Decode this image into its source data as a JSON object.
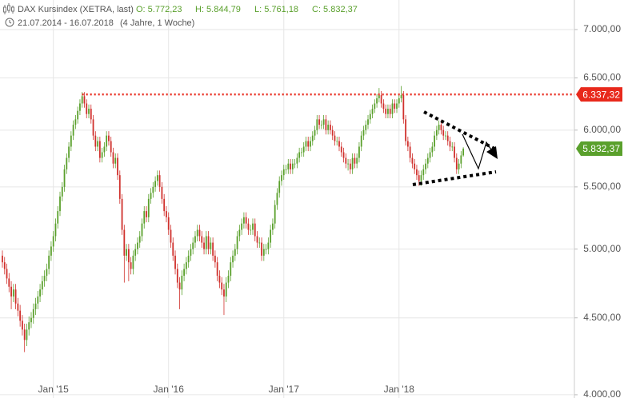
{
  "chart_data": {
    "type": "candlestick",
    "title": "DAX Kursindex (XETRA, last)",
    "quote": [
      "O: 5.772,23",
      "H: 5.844,79",
      "L: 5.761,18",
      "C: 5.832,37"
    ],
    "date_range": "21.07.2014 - 16.07.2018",
    "period": "(4 Jahre, 1 Woche)",
    "categories": [
      null,
      null,
      null,
      null,
      null,
      null,
      null,
      null,
      null,
      null,
      null,
      null,
      null,
      null,
      null,
      null,
      null,
      null,
      null,
      null,
      null,
      null,
      null,
      "Jan '15",
      null,
      null,
      null,
      null,
      null,
      null,
      null,
      null,
      null,
      null,
      null,
      null,
      null,
      null,
      null,
      null,
      null,
      null,
      null,
      null,
      null,
      null,
      null,
      null,
      null,
      null,
      null,
      null,
      null,
      null,
      null,
      null,
      null,
      null,
      null,
      null,
      null,
      null,
      null,
      null,
      null,
      null,
      null,
      null,
      null,
      null,
      null,
      null,
      null,
      null,
      null,
      "Jan '16",
      null,
      null,
      null,
      null,
      null,
      null,
      null,
      null,
      null,
      null,
      null,
      null,
      null,
      null,
      null,
      null,
      null,
      null,
      null,
      null,
      null,
      null,
      null,
      null,
      null,
      null,
      null,
      null,
      null,
      null,
      null,
      null,
      null,
      null,
      null,
      null,
      null,
      null,
      null,
      null,
      null,
      null,
      null,
      null,
      null,
      null,
      null,
      null,
      null,
      null,
      null,
      "Jan '17",
      null,
      null,
      null,
      null,
      null,
      null,
      null,
      null,
      null,
      null,
      null,
      null,
      null,
      null,
      null,
      null,
      null,
      null,
      null,
      null,
      null,
      null,
      null,
      null,
      null,
      null,
      null,
      null,
      null,
      null,
      null,
      null,
      null,
      null,
      null,
      null,
      null,
      null,
      null,
      null,
      null,
      null,
      null,
      null,
      null,
      null,
      null,
      null,
      null,
      null,
      null,
      "Jan '18",
      null,
      null,
      null,
      null,
      null,
      null,
      null,
      null,
      null,
      null,
      null,
      null,
      null,
      null,
      null,
      null,
      null,
      null,
      null,
      null,
      null,
      null,
      null,
      null,
      null,
      null,
      null,
      null,
      null
    ],
    "open": [
      4950,
      4900,
      4850,
      4780,
      4720,
      4650,
      4700,
      4600,
      4550,
      4480,
      4420,
      4350,
      4420,
      4470,
      4500,
      4560,
      4600,
      4650,
      4700,
      4760,
      4800,
      4850,
      4950,
      5020,
      5100,
      5200,
      5300,
      5420,
      5500,
      5650,
      5750,
      5850,
      5950,
      6050,
      6100,
      6180,
      6250,
      6320,
      6250,
      6150,
      6200,
      6100,
      5950,
      5850,
      5900,
      5750,
      5800,
      5850,
      5950,
      5900,
      5800,
      5700,
      5750,
      5600,
      5400,
      5150,
      4950,
      5000,
      4900,
      4850,
      4950,
      5000,
      5050,
      5100,
      5200,
      5300,
      5250,
      5400,
      5450,
      5500,
      5550,
      5600,
      5500,
      5400,
      5300,
      5250,
      5150,
      5050,
      4950,
      4850,
      4750,
      4700,
      4800,
      4850,
      4900,
      4950,
      5000,
      5050,
      5100,
      5150,
      5100,
      5050,
      5000,
      5100,
      5000,
      5050,
      4950,
      4900,
      4800,
      4750,
      4700,
      4650,
      4750,
      4800,
      4900,
      4950,
      5000,
      5100,
      5150,
      5200,
      5250,
      5200,
      5150,
      5150,
      5200,
      5100,
      5050,
      5050,
      4950,
      5000,
      5000,
      5050,
      5150,
      5200,
      5350,
      5450,
      5550,
      5600,
      5650,
      5650,
      5700,
      5650,
      5700,
      5700,
      5750,
      5800,
      5800,
      5850,
      5900,
      5850,
      5900,
      5950,
      6000,
      6100,
      6050,
      6050,
      6100,
      6000,
      6050,
      6000,
      5950,
      5900,
      5900,
      5850,
      5800,
      5750,
      5700,
      5700,
      5650,
      5750,
      5700,
      5750,
      5850,
      5950,
      6000,
      6050,
      6100,
      6150,
      6200,
      6250,
      6300,
      6330,
      6250,
      6200,
      6150,
      6200,
      6150,
      6250,
      6200,
      6250,
      6300,
      6330,
      6100,
      5900,
      5850,
      5750,
      5700,
      5650,
      5600,
      5550,
      5600,
      5650,
      5700,
      5750,
      5800,
      5850,
      5950,
      6000,
      6050,
      6000,
      5950,
      5950,
      5900,
      5850,
      5850,
      5750,
      5650,
      5700,
      5772.23
    ],
    "high": [
      4990,
      4940,
      4890,
      4820,
      4760,
      4740,
      4740,
      4640,
      4590,
      4520,
      4460,
      4460,
      4510,
      4540,
      4600,
      4640,
      4690,
      4740,
      4800,
      4840,
      4890,
      4990,
      5060,
      5140,
      5240,
      5340,
      5460,
      5540,
      5690,
      5790,
      5890,
      5990,
      6090,
      6140,
      6220,
      6290,
      6360,
      6360,
      6290,
      6240,
      6240,
      6140,
      5990,
      5940,
      5940,
      5840,
      5890,
      5990,
      5990,
      5940,
      5840,
      5790,
      5790,
      5640,
      5440,
      5190,
      5040,
      5040,
      4940,
      4990,
      5040,
      5090,
      5140,
      5240,
      5340,
      5340,
      5440,
      5490,
      5540,
      5590,
      5640,
      5640,
      5540,
      5440,
      5340,
      5290,
      5190,
      5090,
      4990,
      4890,
      4790,
      4840,
      4890,
      4940,
      4990,
      5040,
      5090,
      5140,
      5190,
      5190,
      5140,
      5090,
      5140,
      5140,
      5090,
      5090,
      4990,
      4940,
      4840,
      4790,
      4740,
      4790,
      4840,
      4940,
      4990,
      5040,
      5140,
      5190,
      5240,
      5290,
      5290,
      5240,
      5190,
      5240,
      5240,
      5140,
      5090,
      5090,
      5040,
      5040,
      5090,
      5190,
      5240,
      5390,
      5490,
      5590,
      5640,
      5690,
      5690,
      5740,
      5740,
      5740,
      5740,
      5790,
      5840,
      5840,
      5890,
      5940,
      5940,
      5940,
      5990,
      6040,
      6140,
      6140,
      6090,
      6140,
      6140,
      6090,
      6090,
      6040,
      5990,
      5940,
      5940,
      5890,
      5840,
      5790,
      5740,
      5740,
      5790,
      5790,
      5790,
      5890,
      5990,
      6040,
      6090,
      6140,
      6190,
      6240,
      6290,
      6340,
      6400,
      6370,
      6290,
      6240,
      6240,
      6240,
      6290,
      6290,
      6290,
      6340,
      6420,
      6370,
      6140,
      5940,
      5890,
      5790,
      5740,
      5690,
      5640,
      5640,
      5690,
      5740,
      5790,
      5840,
      5890,
      5990,
      6040,
      6090,
      6090,
      6040,
      5990,
      5990,
      5940,
      5890,
      5890,
      5790,
      5740,
      5810,
      5844.79
    ],
    "low": [
      4860,
      4810,
      4740,
      4680,
      4560,
      4610,
      4560,
      4510,
      4440,
      4380,
      4270,
      4310,
      4380,
      4430,
      4460,
      4520,
      4560,
      4610,
      4660,
      4720,
      4760,
      4810,
      4910,
      4980,
      5060,
      5160,
      5260,
      5380,
      5460,
      5610,
      5710,
      5810,
      5910,
      6010,
      6060,
      6140,
      6210,
      6210,
      6110,
      6110,
      6060,
      5910,
      5810,
      5810,
      5710,
      5710,
      5760,
      5810,
      5860,
      5760,
      5660,
      5660,
      5560,
      5360,
      5110,
      4750,
      4910,
      4760,
      4810,
      4810,
      4910,
      4960,
      5010,
      5060,
      5160,
      5210,
      5210,
      5360,
      5410,
      5460,
      5510,
      5460,
      5360,
      5260,
      5210,
      5110,
      5010,
      4910,
      4810,
      4710,
      4560,
      4660,
      4760,
      4810,
      4860,
      4910,
      4960,
      5010,
      5060,
      5060,
      5010,
      4960,
      4960,
      4960,
      4960,
      4910,
      4860,
      4760,
      4710,
      4660,
      4520,
      4610,
      4710,
      4760,
      4860,
      4910,
      4960,
      5060,
      5110,
      5160,
      5160,
      5110,
      5110,
      5110,
      5060,
      5010,
      5010,
      4910,
      4910,
      4960,
      4960,
      5010,
      5110,
      5160,
      5310,
      5410,
      5510,
      5560,
      5610,
      5610,
      5610,
      5610,
      5660,
      5660,
      5710,
      5760,
      5760,
      5810,
      5810,
      5810,
      5860,
      5910,
      5960,
      6010,
      6010,
      6010,
      5960,
      5960,
      5960,
      5910,
      5860,
      5860,
      5810,
      5760,
      5710,
      5660,
      5640,
      5610,
      5610,
      5660,
      5660,
      5710,
      5810,
      5910,
      5960,
      6010,
      6060,
      6110,
      6160,
      6210,
      6260,
      6210,
      6160,
      6110,
      6110,
      6110,
      6110,
      6160,
      6160,
      6210,
      6260,
      6060,
      5860,
      5810,
      5710,
      5660,
      5610,
      5560,
      5510,
      5510,
      5560,
      5610,
      5660,
      5710,
      5760,
      5810,
      5910,
      5960,
      5960,
      5910,
      5910,
      5860,
      5810,
      5810,
      5710,
      5610,
      5610,
      5660,
      5761.18
    ],
    "close": [
      4900,
      4850,
      4780,
      4720,
      4650,
      4700,
      4600,
      4550,
      4480,
      4420,
      4350,
      4420,
      4470,
      4500,
      4560,
      4600,
      4650,
      4700,
      4760,
      4800,
      4850,
      4950,
      5020,
      5100,
      5200,
      5300,
      5420,
      5500,
      5650,
      5750,
      5850,
      5950,
      6050,
      6100,
      6180,
      6250,
      6320,
      6250,
      6150,
      6200,
      6100,
      5950,
      5850,
      5900,
      5750,
      5800,
      5850,
      5950,
      5900,
      5800,
      5700,
      5750,
      5600,
      5400,
      5150,
      4950,
      5000,
      4900,
      4850,
      4950,
      5000,
      5050,
      5100,
      5200,
      5300,
      5250,
      5400,
      5450,
      5500,
      5550,
      5600,
      5500,
      5400,
      5300,
      5250,
      5150,
      5050,
      4950,
      4850,
      4750,
      4700,
      4800,
      4850,
      4900,
      4950,
      5000,
      5050,
      5100,
      5150,
      5100,
      5050,
      5000,
      5100,
      5000,
      5050,
      4950,
      4900,
      4800,
      4750,
      4700,
      4650,
      4750,
      4800,
      4900,
      4950,
      5000,
      5100,
      5150,
      5200,
      5250,
      5200,
      5150,
      5150,
      5200,
      5100,
      5050,
      5050,
      4950,
      5000,
      5000,
      5050,
      5150,
      5200,
      5350,
      5450,
      5550,
      5600,
      5650,
      5650,
      5700,
      5650,
      5700,
      5700,
      5750,
      5800,
      5800,
      5850,
      5900,
      5850,
      5900,
      5950,
      6000,
      6100,
      6050,
      6050,
      6100,
      6000,
      6050,
      6000,
      5950,
      5900,
      5900,
      5850,
      5800,
      5750,
      5700,
      5700,
      5650,
      5750,
      5700,
      5750,
      5850,
      5950,
      6000,
      6050,
      6100,
      6150,
      6200,
      6250,
      6300,
      6330,
      6250,
      6200,
      6150,
      6200,
      6150,
      6250,
      6200,
      6250,
      6300,
      6330,
      6100,
      5900,
      5850,
      5750,
      5700,
      5650,
      5600,
      5550,
      5600,
      5650,
      5700,
      5750,
      5800,
      5850,
      5950,
      6000,
      6050,
      6000,
      5950,
      5950,
      5900,
      5850,
      5850,
      5750,
      5650,
      5700,
      5772,
      5832.37
    ],
    "up_color": "#5aa02c",
    "down_color": "#d0312d",
    "log_y": true,
    "grid": true,
    "ylim": [
      3980,
      7324
    ],
    "yticks": [
      {
        "value": 4000,
        "label": "4.000,00"
      },
      {
        "value": 4500,
        "label": "4.500,00"
      },
      {
        "value": 5000,
        "label": "5.000,00"
      },
      {
        "value": 5500,
        "label": "5.500,00"
      },
      {
        "value": 6000,
        "label": "6.000,00"
      },
      {
        "value": 6500,
        "label": "6.500,00"
      },
      {
        "value": 7000,
        "label": "7.000,00"
      }
    ],
    "annotations": [
      {
        "value": 6337.32,
        "label": "6.337,32",
        "color": "#e8291c"
      },
      {
        "value": 5832.37,
        "label": "5.832,37",
        "color": "#5aa02c"
      }
    ]
  }
}
